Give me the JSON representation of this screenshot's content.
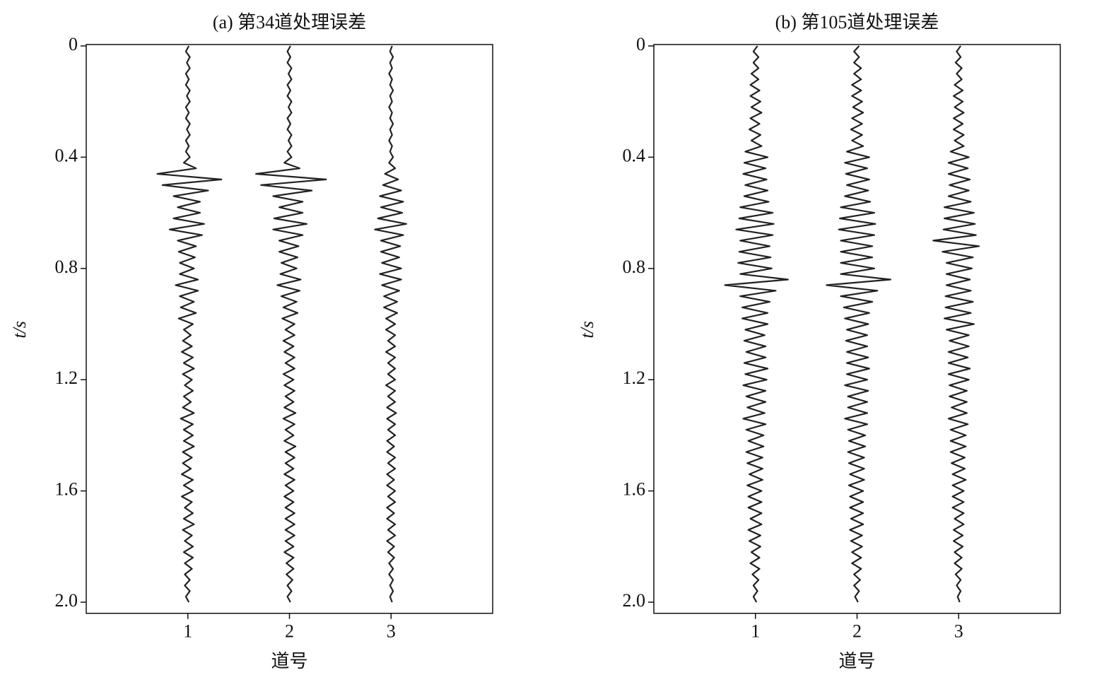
{
  "chart_data": [
    {
      "type": "wiggle",
      "title": "(a) 第34道处理误差",
      "x_label": "道号",
      "y_label": "t/s",
      "categories": [
        1,
        2,
        3
      ],
      "xlim": [
        0,
        4
      ],
      "xticks": [
        1,
        2,
        3
      ],
      "ylim": [
        0,
        2.04
      ],
      "y_inverted": true,
      "yticks": [
        0,
        0.4,
        0.8,
        1.2,
        1.6,
        {
          "value": 2,
          "label": "2.0"
        }
      ],
      "x": [
        0,
        0.02,
        0.04,
        0.06,
        0.08,
        0.1,
        0.12,
        0.14,
        0.16,
        0.18,
        0.2,
        0.22,
        0.24,
        0.26,
        0.28,
        0.3,
        0.32,
        0.34,
        0.36,
        0.38,
        0.4,
        0.42,
        0.44,
        0.46,
        0.48,
        0.5,
        0.52,
        0.54,
        0.56,
        0.58,
        0.6,
        0.62,
        0.64,
        0.66,
        0.68,
        0.7,
        0.72,
        0.74,
        0.76,
        0.78,
        0.8,
        0.82,
        0.84,
        0.86,
        0.88,
        0.9,
        0.92,
        0.94,
        0.96,
        0.98,
        1,
        1.02,
        1.04,
        1.06,
        1.08,
        1.1,
        1.12,
        1.14,
        1.16,
        1.18,
        1.2,
        1.22,
        1.24,
        1.26,
        1.28,
        1.3,
        1.32,
        1.34,
        1.36,
        1.38,
        1.4,
        1.42,
        1.44,
        1.46,
        1.48,
        1.5,
        1.52,
        1.54,
        1.56,
        1.58,
        1.6,
        1.62,
        1.64,
        1.66,
        1.68,
        1.7,
        1.72,
        1.74,
        1.76,
        1.78,
        1.8,
        1.82,
        1.84,
        1.86,
        1.88,
        1.9,
        1.92,
        1.94,
        1.96,
        1.98,
        2
      ],
      "series": [
        {
          "color": "#222222",
          "values": [
            0.01,
            -0.02,
            0.02,
            -0.01,
            0.02,
            -0.02,
            0.01,
            -0.02,
            0.02,
            -0.01,
            0.02,
            -0.02,
            0.01,
            -0.02,
            0.02,
            -0.01,
            0.02,
            -0.02,
            0.01,
            -0.02,
            0.02,
            -0.04,
            0.08,
            -0.3,
            0.33,
            -0.25,
            0.2,
            -0.14,
            0.12,
            -0.1,
            0.12,
            -0.14,
            0.16,
            -0.18,
            0.14,
            -0.1,
            0.08,
            -0.09,
            0.07,
            -0.08,
            0.06,
            -0.08,
            0.1,
            -0.12,
            0.1,
            -0.08,
            0.06,
            -0.07,
            0.08,
            -0.09,
            0.05,
            -0.04,
            0.03,
            -0.05,
            0.04,
            -0.06,
            0.05,
            -0.04,
            0.06,
            -0.05,
            0.04,
            -0.03,
            0.05,
            -0.04,
            0.03,
            -0.05,
            0.06,
            -0.07,
            0.05,
            -0.04,
            0.05,
            -0.04,
            0.06,
            -0.05,
            0.04,
            -0.05,
            0.03,
            -0.06,
            0.05,
            -0.04,
            0.05,
            -0.06,
            0.04,
            -0.03,
            0.05,
            -0.04,
            0.06,
            -0.05,
            0.04,
            -0.03,
            0.05,
            -0.04,
            0.05,
            -0.03,
            0.04,
            -0.03,
            0.02,
            -0.03,
            0.02,
            -0.02,
            0.01
          ]
        },
        {
          "color": "#222222",
          "values": [
            0.01,
            -0.02,
            0.01,
            -0.02,
            0.02,
            -0.01,
            0.02,
            -0.02,
            0.01,
            -0.02,
            0.02,
            -0.01,
            0.02,
            -0.02,
            0.01,
            -0.02,
            0.02,
            -0.01,
            0.02,
            -0.02,
            0.02,
            -0.05,
            0.1,
            -0.33,
            0.36,
            -0.28,
            0.22,
            -0.16,
            0.13,
            -0.1,
            0.13,
            -0.15,
            0.17,
            -0.16,
            0.13,
            -0.1,
            0.09,
            -0.1,
            0.08,
            -0.08,
            0.07,
            -0.09,
            0.11,
            -0.12,
            0.1,
            -0.08,
            0.07,
            -0.06,
            0.08,
            -0.07,
            0.05,
            -0.04,
            0.05,
            -0.06,
            0.04,
            -0.05,
            0.05,
            -0.04,
            0.05,
            -0.06,
            0.04,
            -0.05,
            0.05,
            -0.04,
            0.04,
            -0.05,
            0.06,
            -0.06,
            0.05,
            -0.04,
            0.04,
            -0.05,
            0.06,
            -0.04,
            0.05,
            -0.04,
            0.04,
            -0.05,
            0.05,
            -0.04,
            0.04,
            -0.05,
            0.04,
            -0.04,
            0.05,
            -0.04,
            0.05,
            -0.04,
            0.05,
            -0.04,
            0.04,
            -0.05,
            0.04,
            -0.03,
            0.04,
            -0.03,
            0.03,
            -0.02,
            0.02,
            -0.02,
            0.01
          ]
        },
        {
          "color": "#222222",
          "values": [
            0.01,
            -0.01,
            0.02,
            -0.01,
            0.01,
            -0.02,
            0.01,
            -0.01,
            0.02,
            -0.01,
            0.01,
            -0.02,
            0.01,
            -0.01,
            0.02,
            -0.01,
            0.01,
            -0.02,
            0.01,
            -0.01,
            0.02,
            -0.02,
            0.04,
            -0.06,
            0.07,
            -0.08,
            0.1,
            -0.11,
            0.12,
            -0.1,
            0.11,
            -0.13,
            0.15,
            -0.16,
            0.12,
            -0.1,
            0.09,
            -0.1,
            0.08,
            -0.09,
            0.1,
            -0.11,
            0.1,
            -0.09,
            0.08,
            -0.07,
            0.06,
            -0.07,
            0.06,
            -0.05,
            0.04,
            -0.05,
            0.04,
            -0.03,
            0.04,
            -0.05,
            0.04,
            -0.03,
            0.04,
            -0.03,
            0.04,
            -0.05,
            0.04,
            -0.03,
            0.04,
            -0.04,
            0.05,
            -0.04,
            0.04,
            -0.03,
            0.04,
            -0.04,
            0.03,
            -0.04,
            0.04,
            -0.03,
            0.04,
            -0.04,
            0.03,
            -0.04,
            0.04,
            -0.03,
            0.04,
            -0.04,
            0.03,
            -0.04,
            0.04,
            -0.03,
            0.04,
            -0.04,
            0.03,
            -0.03,
            0.03,
            -0.02,
            0.02,
            -0.02,
            0.02,
            -0.01,
            0.02,
            -0.01,
            0.01
          ]
        }
      ]
    },
    {
      "type": "wiggle",
      "title": "(b) 第105道处理误差",
      "x_label": "道号",
      "y_label": "t/s",
      "categories": [
        1,
        2,
        3
      ],
      "xlim": [
        0,
        4
      ],
      "xticks": [
        1,
        2,
        3
      ],
      "ylim": [
        0,
        2.04
      ],
      "y_inverted": true,
      "yticks": [
        0,
        0.4,
        0.8,
        1.2,
        1.6,
        {
          "value": 2,
          "label": "2.0"
        }
      ],
      "x": [
        0,
        0.02,
        0.04,
        0.06,
        0.08,
        0.1,
        0.12,
        0.14,
        0.16,
        0.18,
        0.2,
        0.22,
        0.24,
        0.26,
        0.28,
        0.3,
        0.32,
        0.34,
        0.36,
        0.38,
        0.4,
        0.42,
        0.44,
        0.46,
        0.48,
        0.5,
        0.52,
        0.54,
        0.56,
        0.58,
        0.6,
        0.62,
        0.64,
        0.66,
        0.68,
        0.7,
        0.72,
        0.74,
        0.76,
        0.78,
        0.8,
        0.82,
        0.84,
        0.86,
        0.88,
        0.9,
        0.92,
        0.94,
        0.96,
        0.98,
        1,
        1.02,
        1.04,
        1.06,
        1.08,
        1.1,
        1.12,
        1.14,
        1.16,
        1.18,
        1.2,
        1.22,
        1.24,
        1.26,
        1.28,
        1.3,
        1.32,
        1.34,
        1.36,
        1.38,
        1.4,
        1.42,
        1.44,
        1.46,
        1.48,
        1.5,
        1.52,
        1.54,
        1.56,
        1.58,
        1.6,
        1.62,
        1.64,
        1.66,
        1.68,
        1.7,
        1.72,
        1.74,
        1.76,
        1.78,
        1.8,
        1.82,
        1.84,
        1.86,
        1.88,
        1.9,
        1.92,
        1.94,
        1.96,
        1.98,
        2
      ],
      "series": [
        {
          "color": "#222222",
          "values": [
            0.02,
            -0.02,
            0.03,
            -0.02,
            0.03,
            -0.04,
            0.03,
            -0.05,
            0.04,
            -0.05,
            0.05,
            -0.04,
            0.06,
            -0.05,
            0.04,
            -0.06,
            0.05,
            -0.04,
            0.06,
            -0.1,
            0.12,
            -0.11,
            0.1,
            -0.12,
            0.11,
            -0.1,
            0.12,
            -0.11,
            0.13,
            -0.15,
            0.17,
            -0.16,
            0.18,
            -0.19,
            0.17,
            -0.15,
            0.14,
            -0.16,
            0.15,
            -0.17,
            0.16,
            -0.15,
            0.32,
            -0.3,
            0.2,
            -0.15,
            0.14,
            -0.13,
            0.12,
            -0.13,
            0.12,
            -0.1,
            0.09,
            -0.11,
            0.1,
            -0.09,
            0.1,
            -0.11,
            0.12,
            -0.1,
            0.11,
            -0.12,
            0.1,
            -0.09,
            0.1,
            -0.08,
            0.09,
            -0.12,
            0.1,
            -0.09,
            0.08,
            -0.07,
            0.08,
            -0.09,
            0.07,
            -0.08,
            0.07,
            -0.06,
            0.07,
            -0.08,
            0.06,
            -0.07,
            0.06,
            -0.07,
            0.06,
            -0.05,
            0.06,
            -0.07,
            0.05,
            -0.06,
            0.05,
            -0.04,
            0.04,
            -0.05,
            0.04,
            -0.03,
            0.03,
            -0.02,
            0.02,
            -0.02,
            0.01
          ]
        },
        {
          "color": "#222222",
          "values": [
            0.02,
            -0.03,
            0.02,
            -0.03,
            0.04,
            -0.03,
            0.04,
            -0.05,
            0.04,
            -0.05,
            0.05,
            -0.04,
            0.06,
            -0.05,
            0.05,
            -0.06,
            0.05,
            -0.05,
            0.06,
            -0.1,
            0.12,
            -0.12,
            0.1,
            -0.11,
            0.12,
            -0.1,
            0.11,
            -0.12,
            0.13,
            -0.16,
            0.17,
            -0.17,
            0.18,
            -0.18,
            0.17,
            -0.16,
            0.15,
            -0.16,
            0.15,
            -0.16,
            0.17,
            -0.16,
            0.33,
            -0.3,
            0.2,
            -0.16,
            0.15,
            -0.13,
            0.12,
            -0.12,
            0.11,
            -0.1,
            0.1,
            -0.11,
            0.1,
            -0.1,
            0.11,
            -0.1,
            0.12,
            -0.1,
            0.1,
            -0.12,
            0.11,
            -0.09,
            0.1,
            -0.09,
            0.1,
            -0.12,
            0.1,
            -0.09,
            0.08,
            -0.08,
            0.08,
            -0.09,
            0.07,
            -0.08,
            0.07,
            -0.07,
            0.07,
            -0.08,
            0.06,
            -0.07,
            0.06,
            -0.07,
            0.06,
            -0.06,
            0.06,
            -0.07,
            0.05,
            -0.06,
            0.05,
            -0.05,
            0.04,
            -0.05,
            0.04,
            -0.03,
            0.03,
            -0.03,
            0.02,
            -0.02,
            0.01
          ]
        },
        {
          "color": "#222222",
          "values": [
            0.02,
            -0.02,
            0.02,
            -0.03,
            0.03,
            -0.02,
            0.03,
            -0.04,
            0.04,
            -0.05,
            0.04,
            -0.04,
            0.05,
            -0.05,
            0.04,
            -0.05,
            0.05,
            -0.04,
            0.05,
            -0.08,
            0.1,
            -0.1,
            0.09,
            -0.1,
            0.11,
            -0.09,
            0.1,
            -0.1,
            0.12,
            -0.14,
            0.15,
            -0.14,
            0.16,
            -0.15,
            0.17,
            -0.25,
            0.2,
            -0.16,
            0.14,
            -0.12,
            0.13,
            -0.12,
            0.11,
            -0.12,
            0.12,
            -0.13,
            0.14,
            -0.13,
            0.12,
            -0.14,
            0.15,
            -0.12,
            0.1,
            -0.09,
            0.1,
            -0.1,
            0.09,
            -0.1,
            0.11,
            -0.1,
            0.1,
            -0.09,
            0.08,
            -0.09,
            0.08,
            -0.07,
            0.08,
            -0.1,
            0.09,
            -0.08,
            0.07,
            -0.08,
            0.07,
            -0.08,
            0.06,
            -0.07,
            0.06,
            -0.06,
            0.07,
            -0.06,
            0.05,
            -0.06,
            0.05,
            -0.06,
            0.05,
            -0.04,
            0.05,
            -0.05,
            0.04,
            -0.05,
            0.04,
            -0.04,
            0.03,
            -0.04,
            0.03,
            -0.03,
            0.02,
            -0.02,
            0.02,
            -0.01,
            0.01
          ]
        }
      ]
    }
  ]
}
